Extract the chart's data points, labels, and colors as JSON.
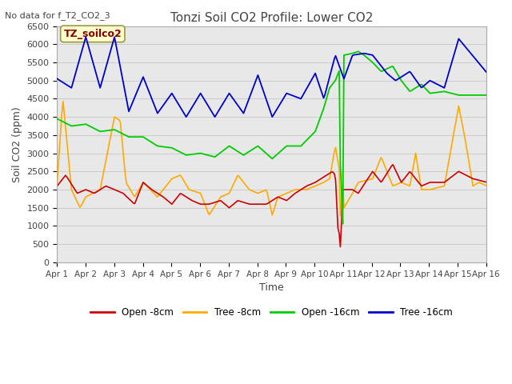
{
  "title": "Tonzi Soil CO2 Profile: Lower CO2",
  "subtitle": "No data for f_T2_CO2_3",
  "xlabel": "Time",
  "ylabel": "Soil CO2 (ppm)",
  "ylim": [
    0,
    6500
  ],
  "legend_box_label": "TZ_soilco2",
  "background_color": "#ffffff",
  "plot_bg_color": "#e8e8e8",
  "grid_color": "#cccccc",
  "series_colors": {
    "open_8cm": "#cc0000",
    "tree_8cm": "#ffaa00",
    "open_16cm": "#00cc00",
    "tree_16cm": "#0000cc"
  },
  "legend_labels": [
    "Open -8cm",
    "Tree -8cm",
    "Open -16cm",
    "Tree -16cm"
  ],
  "xtick_labels": [
    "Apr 1",
    "Apr 2",
    "Apr 3",
    "Apr 4",
    "Apr 5",
    "Apr 6",
    "Apr 7",
    "Apr 8",
    "Apr 9",
    "Apr 10",
    "Apr 11",
    "Apr 12",
    "Apr 13",
    "Apr 14",
    "Apr 15",
    "Apr 16"
  ],
  "ytick_values": [
    0,
    500,
    1000,
    1500,
    2000,
    2500,
    3000,
    3500,
    4000,
    4500,
    5000,
    5500,
    6000,
    6500
  ]
}
